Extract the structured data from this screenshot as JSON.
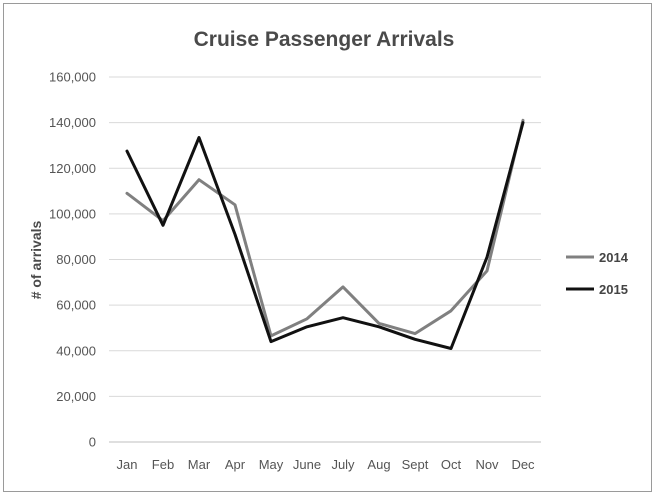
{
  "chart_data": {
    "type": "line",
    "title": "Cruise Passenger Arrivals",
    "xlabel": "",
    "ylabel": "# of arrivals",
    "categories": [
      "Jan",
      "Feb",
      "Mar",
      "Apr",
      "May",
      "June",
      "July",
      "Aug",
      "Sept",
      "Oct",
      "Nov",
      "Dec"
    ],
    "ylim": [
      0,
      160000
    ],
    "yticks": [
      0,
      20000,
      40000,
      60000,
      80000,
      100000,
      120000,
      140000,
      160000
    ],
    "ytick_labels": [
      "0",
      "20,000",
      "40,000",
      "60,000",
      "80,000",
      "100,000",
      "120,000",
      "140,000",
      "160,000"
    ],
    "grid": true,
    "legend_position": "right",
    "series": [
      {
        "name": "2014",
        "color": "#808080",
        "values": [
          109000,
          97000,
          115000,
          104000,
          46500,
          54000,
          68000,
          52000,
          47500,
          57500,
          75000,
          141000
        ]
      },
      {
        "name": "2015",
        "color": "#111111",
        "values": [
          127500,
          95000,
          133500,
          91000,
          44000,
          50500,
          54500,
          50500,
          45000,
          41000,
          81000,
          140000
        ]
      }
    ]
  }
}
